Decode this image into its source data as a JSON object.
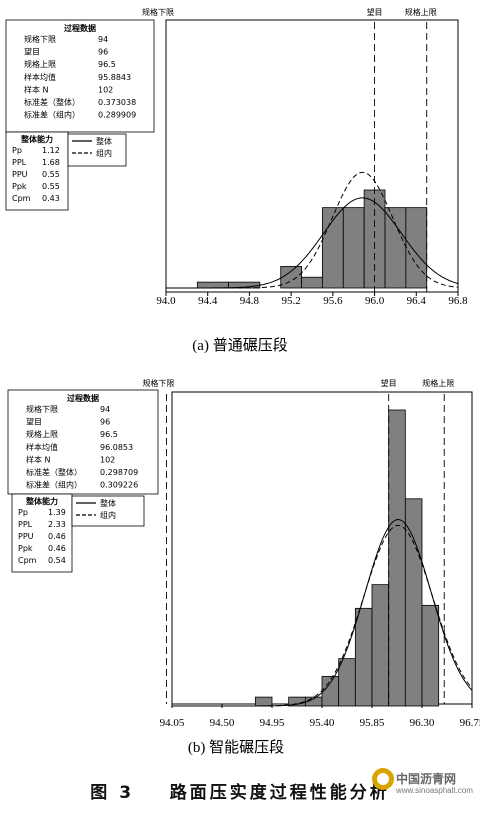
{
  "figure": {
    "caption_prefix": "图 3",
    "caption_text": "路面压实度过程性能分析",
    "watermark_name": "中国沥青网",
    "watermark_url": "www.sinoasphalt.com"
  },
  "chart_data": [
    {
      "type": "bar",
      "subcaption": "(a) 普通碾压段",
      "x_ticks": [
        "94.0",
        "94.4",
        "94.8",
        "95.2",
        "95.6",
        "96.0",
        "96.4",
        "96.8"
      ],
      "xlim": [
        94.0,
        96.8
      ],
      "spec_labels": {
        "lsl": "规格下限",
        "target": "望目",
        "usl": "规格上限"
      },
      "spec_values": {
        "lsl": 94,
        "target": 96,
        "usl": 96.5
      },
      "bins": [
        {
          "start": 94.3,
          "end": 94.6,
          "height": 0.06
        },
        {
          "start": 94.6,
          "end": 94.9,
          "height": 0.06
        },
        {
          "start": 95.1,
          "end": 95.3,
          "height": 0.22
        },
        {
          "start": 95.3,
          "end": 95.5,
          "height": 0.11
        },
        {
          "start": 95.5,
          "end": 95.7,
          "height": 0.82
        },
        {
          "start": 95.7,
          "end": 95.9,
          "height": 0.82
        },
        {
          "start": 95.9,
          "end": 96.1,
          "height": 1.0
        },
        {
          "start": 96.1,
          "end": 96.3,
          "height": 0.82
        },
        {
          "start": 96.3,
          "end": 96.5,
          "height": 0.82
        }
      ],
      "overall_curve": {
        "mean": 95.8843,
        "sd": 0.373038,
        "peak": 0.92
      },
      "within_curve": {
        "mean": 95.8843,
        "sd": 0.289909,
        "peak": 1.18
      },
      "process_data": {
        "title": "过程数据",
        "rows": [
          {
            "label": "规格下限",
            "value": "94"
          },
          {
            "label": "望目",
            "value": "96"
          },
          {
            "label": "规格上限",
            "value": "96.5"
          },
          {
            "label": "样本均值",
            "value": "95.8843"
          },
          {
            "label": "样本 N",
            "value": "102"
          },
          {
            "label": "标准差（整体）",
            "value": "0.373038"
          },
          {
            "label": "标准差（组内）",
            "value": "0.289909"
          }
        ]
      },
      "capability": {
        "title": "整体能力",
        "rows": [
          {
            "label": "Pp",
            "value": "1.12"
          },
          {
            "label": "PPL",
            "value": "1.68"
          },
          {
            "label": "PPU",
            "value": "0.55"
          },
          {
            "label": "Ppk",
            "value": "0.55"
          },
          {
            "label": "Cpm",
            "value": "0.43"
          }
        ]
      },
      "legend": [
        {
          "label": "整体",
          "style": "solid"
        },
        {
          "label": "组内",
          "style": "dashed"
        }
      ]
    },
    {
      "type": "bar",
      "subcaption": "(b) 智能碾压段",
      "x_ticks": [
        "94.05",
        "94.50",
        "94.95",
        "95.40",
        "95.85",
        "96.30",
        "96.75"
      ],
      "xlim": [
        94.05,
        96.75
      ],
      "spec_labels": {
        "lsl": "规格下限",
        "target": "望目",
        "usl": "规格上限"
      },
      "spec_values": {
        "lsl": 94,
        "target": 96,
        "usl": 96.5
      },
      "bins": [
        {
          "start": 94.8,
          "end": 94.95,
          "height": 0.03
        },
        {
          "start": 95.1,
          "end": 95.25,
          "height": 0.03
        },
        {
          "start": 95.25,
          "end": 95.4,
          "height": 0.03
        },
        {
          "start": 95.4,
          "end": 95.55,
          "height": 0.1
        },
        {
          "start": 95.55,
          "end": 95.7,
          "height": 0.16
        },
        {
          "start": 95.7,
          "end": 95.85,
          "height": 0.33
        },
        {
          "start": 95.85,
          "end": 96.0,
          "height": 0.41
        },
        {
          "start": 96.0,
          "end": 96.15,
          "height": 1.0
        },
        {
          "start": 96.15,
          "end": 96.3,
          "height": 0.7
        },
        {
          "start": 96.3,
          "end": 96.45,
          "height": 0.34
        }
      ],
      "overall_curve": {
        "mean": 96.0853,
        "sd": 0.298709,
        "peak": 0.63
      },
      "within_curve": {
        "mean": 96.0853,
        "sd": 0.309226,
        "peak": 0.61
      },
      "process_data": {
        "title": "过程数据",
        "rows": [
          {
            "label": "规格下限",
            "value": "94"
          },
          {
            "label": "望目",
            "value": "96"
          },
          {
            "label": "规格上限",
            "value": "96.5"
          },
          {
            "label": "样本均值",
            "value": "96.0853"
          },
          {
            "label": "样本 N",
            "value": "102"
          },
          {
            "label": "标准差（整体）",
            "value": "0.298709"
          },
          {
            "label": "标准差（组内）",
            "value": "0.309226"
          }
        ]
      },
      "capability": {
        "title": "整体能力",
        "rows": [
          {
            "label": "Pp",
            "value": "1.39"
          },
          {
            "label": "PPL",
            "value": "2.33"
          },
          {
            "label": "PPU",
            "value": "0.46"
          },
          {
            "label": "Ppk",
            "value": "0.46"
          },
          {
            "label": "Cpm",
            "value": "0.54"
          }
        ]
      },
      "legend": [
        {
          "label": "整体",
          "style": "solid"
        },
        {
          "label": "组内",
          "style": "dashed"
        }
      ]
    }
  ]
}
